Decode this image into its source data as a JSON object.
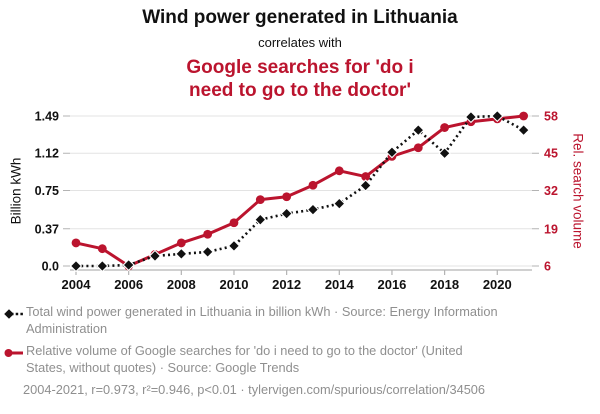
{
  "header": {
    "title": "Wind power generated in Lithuania",
    "connector": "correlates with",
    "subtitle": "Google searches for 'do i need to go to the doctor'",
    "subtitle_lines": [
      "Google searches for 'do i",
      "need to go to the doctor'"
    ]
  },
  "chart_data": {
    "type": "line",
    "x": [
      2004,
      2005,
      2006,
      2007,
      2008,
      2009,
      2010,
      2011,
      2012,
      2013,
      2014,
      2015,
      2016,
      2017,
      2018,
      2019,
      2020,
      2021
    ],
    "x_tick_labels": [
      "2004",
      "2006",
      "2008",
      "2010",
      "2012",
      "2014",
      "2016",
      "2018",
      "2020"
    ],
    "series": [
      {
        "name": "Total wind power generated in Lithuania in billion kWh",
        "axis": "left",
        "style": "dotted-diamond",
        "values": [
          0.0,
          0.0,
          0.01,
          0.1,
          0.12,
          0.14,
          0.2,
          0.46,
          0.52,
          0.56,
          0.62,
          0.8,
          1.13,
          1.35,
          1.12,
          1.48,
          1.49,
          1.35
        ]
      },
      {
        "name": "Relative volume of Google searches for 'do i need to go to the doctor'",
        "axis": "right",
        "style": "solid-circle",
        "values": [
          14,
          12,
          6,
          10,
          14,
          17,
          21,
          29,
          30,
          34,
          39,
          37,
          44,
          47,
          54,
          56,
          57,
          58
        ]
      }
    ],
    "left_axis": {
      "label": "Billion kWh",
      "min": 0,
      "max": 1.49,
      "tick_labels": [
        "0.0",
        "0.37",
        "0.75",
        "1.12",
        "1.49"
      ],
      "ticks": [
        0.0,
        0.37,
        0.75,
        1.12,
        1.49
      ]
    },
    "right_axis": {
      "label": "Rel. search volume",
      "min": 6,
      "max": 58,
      "tick_labels": [
        "6",
        "19",
        "32",
        "45",
        "58"
      ],
      "ticks": [
        6,
        19,
        32,
        45,
        58
      ]
    },
    "grid": true,
    "legend_position": "bottom"
  },
  "legend": {
    "items": [
      {
        "marker": "black-diamond-dotted-line",
        "label": "Total wind power generated in Lithuania in billion kWh · Source: Energy Information Administration"
      },
      {
        "marker": "red-circle-solid-line",
        "label": "Relative volume of Google searches for 'do i need to go to the doctor' (United States, without quotes) · Source: Google Trends"
      }
    ],
    "footer": "2004-2021, r=0.973, r²=0.946, p<0.01 · tylervigen.com/spurious/correlation/34506"
  },
  "colors": {
    "accent_red": "#bb142e",
    "series_black": "#111111",
    "legend_gray": "#8f8f8f",
    "gridline": "#e3e3e3",
    "axis_gray": "#b3b3b3"
  }
}
